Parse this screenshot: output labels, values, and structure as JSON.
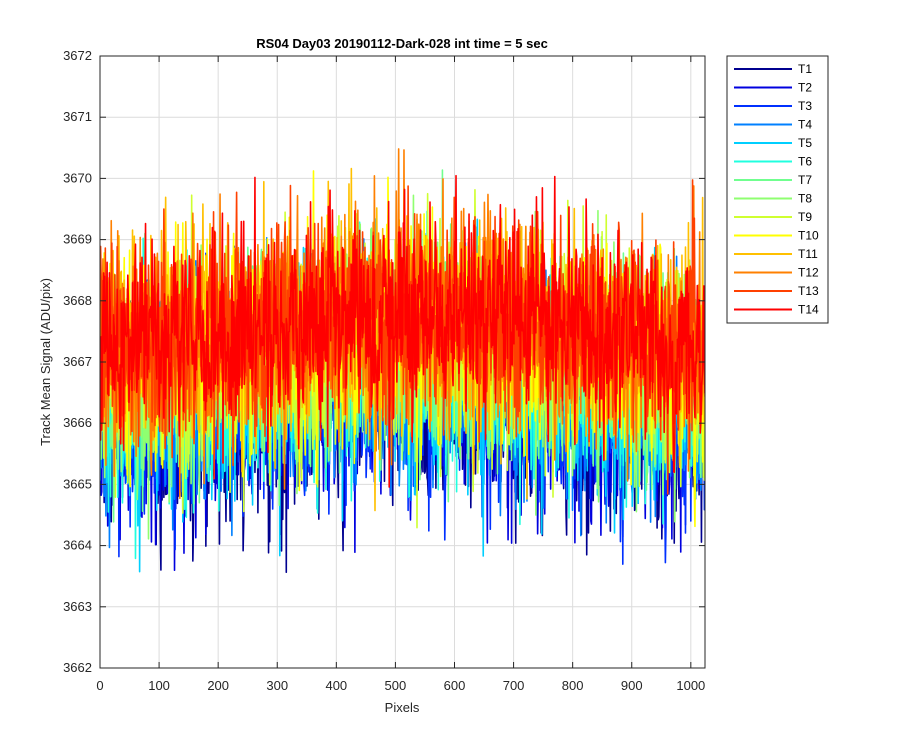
{
  "chart_data": {
    "type": "line",
    "title": "RS04 Day03 20190112-Dark-028 int time = 5 sec",
    "xlabel": "Pixels",
    "ylabel": "Track Mean Signal (ADU/pix)",
    "xlim": [
      0,
      1024
    ],
    "ylim": [
      3662,
      3672
    ],
    "xticks": [
      0,
      100,
      200,
      300,
      400,
      500,
      600,
      700,
      800,
      900,
      1000
    ],
    "yticks": [
      3662,
      3663,
      3664,
      3665,
      3666,
      3667,
      3668,
      3669,
      3670,
      3671,
      3672
    ],
    "grid": true,
    "legend_position": "outside-top-right",
    "x_points": 1024,
    "series": [
      {
        "name": "T1",
        "color": "#00008f",
        "mean": 3666.0,
        "std": 0.85
      },
      {
        "name": "T2",
        "color": "#0000df",
        "mean": 3666.1,
        "std": 0.85
      },
      {
        "name": "T3",
        "color": "#0030ff",
        "mean": 3666.2,
        "std": 0.85
      },
      {
        "name": "T4",
        "color": "#0080ff",
        "mean": 3666.35,
        "std": 0.85
      },
      {
        "name": "T5",
        "color": "#00cfff",
        "mean": 3666.5,
        "std": 0.85
      },
      {
        "name": "T6",
        "color": "#20ffdf",
        "mean": 3666.65,
        "std": 0.85
      },
      {
        "name": "T7",
        "color": "#70ff8f",
        "mean": 3666.8,
        "std": 0.85
      },
      {
        "name": "T8",
        "color": "#8fff70",
        "mean": 3666.95,
        "std": 0.85
      },
      {
        "name": "T9",
        "color": "#cfff30",
        "mean": 3667.05,
        "std": 0.85
      },
      {
        "name": "T10",
        "color": "#ffff00",
        "mean": 3667.15,
        "std": 0.85
      },
      {
        "name": "T11",
        "color": "#ffc000",
        "mean": 3667.25,
        "std": 0.85
      },
      {
        "name": "T12",
        "color": "#ff8000",
        "mean": 3667.3,
        "std": 0.85
      },
      {
        "name": "T13",
        "color": "#ff4000",
        "mean": 3667.35,
        "std": 0.85
      },
      {
        "name": "T14",
        "color": "#ff0000",
        "mean": 3667.4,
        "std": 0.8
      }
    ]
  }
}
